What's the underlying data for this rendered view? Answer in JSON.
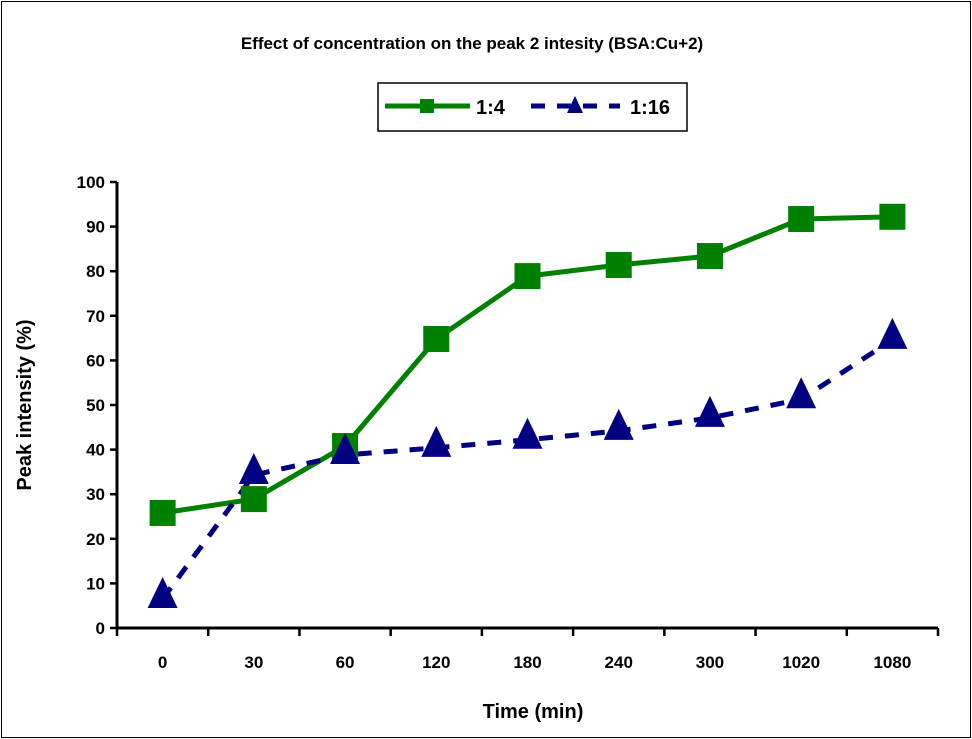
{
  "chart_data": {
    "type": "line",
    "title": "Effect of concentration on the peak 2 intesity (BSA:Cu+2)",
    "xlabel": "Time (min)",
    "ylabel": "Peak intensity (%)",
    "categories": [
      "0",
      "30",
      "60",
      "120",
      "180",
      "240",
      "300",
      "1020",
      "1080"
    ],
    "ylim": [
      0,
      100
    ],
    "yticks": [
      "0",
      "10",
      "20",
      "30",
      "40",
      "50",
      "60",
      "70",
      "80",
      "90",
      "100"
    ],
    "grid": false,
    "legend_position": "top",
    "series": [
      {
        "name": "1:4",
        "color": "#008000",
        "marker": "square",
        "line": "solid",
        "values": [
          25.8,
          28.9,
          40.8,
          64.8,
          78.9,
          81.4,
          83.4,
          91.7,
          92.2
        ]
      },
      {
        "name": "1:16",
        "color": "#000080",
        "marker": "triangle",
        "line": "dashed",
        "values": [
          6.5,
          34.3,
          38.8,
          40.4,
          42.2,
          44.2,
          47.1,
          51.3,
          64.6
        ]
      }
    ]
  }
}
